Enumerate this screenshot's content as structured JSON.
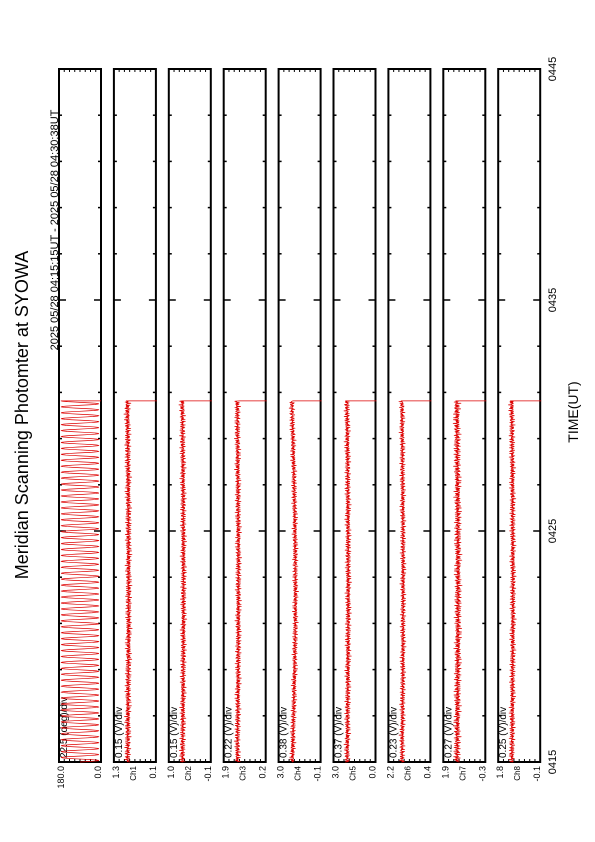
{
  "title": "Meridian Scanning Photomter at SYOWA",
  "time_range": "2025 05/28 04:15:15UT - 2025 05/28 04:30:38UT",
  "xaxis": {
    "label": "TIME(UT)",
    "ticks": [
      "0415",
      "0425",
      "0435",
      "0445"
    ]
  },
  "colors": {
    "trace": "#dd0000",
    "frame": "#000000"
  },
  "chart_data": {
    "type": "line",
    "orientation": "rotated 90deg counter-clockwise (time runs bottom-to-top of page)",
    "xlim": [
      "04:15",
      "04:45"
    ],
    "data_end": "04:30:38",
    "grid": false,
    "panels": [
      {
        "name": "",
        "scale": "22.5 (deg)/div",
        "ymax": "180.0",
        "ymin": "0.0",
        "channel": "",
        "amplitude": 0.9,
        "ripple": 0.05
      },
      {
        "name": "1",
        "scale": "0.15 (V)/div",
        "ymax": "1.3",
        "ymin": "0.1",
        "channel": "Ch1",
        "amplitude": 0.14,
        "ripple": 0.12
      },
      {
        "name": "2",
        "scale": "0.15 (V)/div",
        "ymax": "1.0",
        "ymin": "-0.1",
        "channel": "Ch2",
        "amplitude": 0.13,
        "ripple": 0.12
      },
      {
        "name": "3",
        "scale": "0.22 (V)/div",
        "ymax": "1.9",
        "ymin": "0.2",
        "channel": "Ch3",
        "amplitude": 0.13,
        "ripple": 0.12
      },
      {
        "name": "4",
        "scale": "0.38 (V)/div",
        "ymax": "3.0",
        "ymin": "-0.1",
        "channel": "Ch4",
        "amplitude": 0.12,
        "ripple": 0.12
      },
      {
        "name": "5",
        "scale": "0.37 (V)/div",
        "ymax": "3.0",
        "ymin": "0.0",
        "channel": "Ch5",
        "amplitude": 0.13,
        "ripple": 0.12
      },
      {
        "name": "6",
        "scale": "0.23 (V)/div",
        "ymax": "2.2",
        "ymin": "0.4",
        "channel": "Ch6",
        "amplitude": 0.12,
        "ripple": 0.12
      },
      {
        "name": "7",
        "scale": "0.27 (V)/div",
        "ymax": "1.9",
        "ymin": "-0.3",
        "channel": "Ch7",
        "amplitude": 0.16,
        "ripple": 0.14
      },
      {
        "name": "8",
        "scale": "0.25 (V)/div",
        "ymax": "1.8",
        "ymin": "-0.1",
        "channel": "Ch8",
        "amplitude": 0.13,
        "ripple": 0.12
      }
    ]
  }
}
